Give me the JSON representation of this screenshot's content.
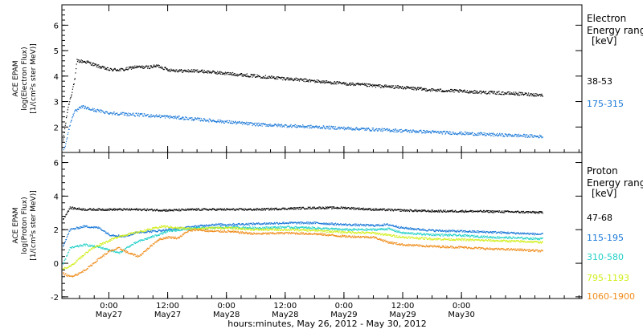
{
  "chart_data": [
    {
      "type": "scatter",
      "panel": "electron",
      "ylabel_lines": [
        "ACE EPAM",
        "log(Electron Flux)",
        "[1/(cm²s ster MeV)]"
      ],
      "legend_title_lines": [
        "Electron",
        "Energy ranges",
        "[keV]"
      ],
      "yticks": [
        "2",
        "3",
        "4",
        "5",
        "6"
      ],
      "ylim": [
        1.0,
        6.8
      ],
      "grid": false,
      "legend_placement": "right",
      "series": [
        {
          "name": "38-53",
          "color": "#000000",
          "points": [
            [
              -9.5,
              1.4
            ],
            [
              -8.5,
              2.7
            ],
            [
              -7.6,
              3.4
            ],
            [
              -7,
              3.9
            ],
            [
              -6.6,
              4.6
            ],
            [
              -4.5,
              4.55
            ],
            [
              -2.5,
              4.4
            ],
            [
              0,
              4.25
            ],
            [
              3,
              4.25
            ],
            [
              5,
              4.35
            ],
            [
              8,
              4.35
            ],
            [
              10,
              4.4
            ],
            [
              12,
              4.25
            ],
            [
              15,
              4.2
            ],
            [
              18,
              4.2
            ],
            [
              21,
              4.15
            ],
            [
              24,
              4.1
            ],
            [
              30,
              4.0
            ],
            [
              36,
              3.9
            ],
            [
              42,
              3.8
            ],
            [
              48,
              3.7
            ],
            [
              54,
              3.62
            ],
            [
              60,
              3.55
            ],
            [
              66,
              3.45
            ],
            [
              72,
              3.4
            ],
            [
              78,
              3.35
            ],
            [
              84,
              3.3
            ],
            [
              88.5,
              3.25
            ]
          ]
        },
        {
          "name": "175-315",
          "color": "#1a78d8",
          "points": [
            [
              -9.5,
              0.9
            ],
            [
              -8.5,
              1.7
            ],
            [
              -7.6,
              2.4
            ],
            [
              -7,
              2.6
            ],
            [
              -5.5,
              2.8
            ],
            [
              -4,
              2.7
            ],
            [
              0,
              2.55
            ],
            [
              4,
              2.5
            ],
            [
              8,
              2.45
            ],
            [
              12,
              2.4
            ],
            [
              18,
              2.3
            ],
            [
              24,
              2.2
            ],
            [
              30,
              2.1
            ],
            [
              36,
              2.05
            ],
            [
              42,
              2.0
            ],
            [
              48,
              1.95
            ],
            [
              54,
              1.9
            ],
            [
              60,
              1.85
            ],
            [
              66,
              1.8
            ],
            [
              72,
              1.75
            ],
            [
              78,
              1.7
            ],
            [
              84,
              1.66
            ],
            [
              88.5,
              1.62
            ]
          ]
        }
      ]
    },
    {
      "type": "scatter",
      "panel": "proton",
      "ylabel_lines": [
        "ACE EPAM",
        "log(Proton Flux)",
        "[1/(cm²s ster MeV)]"
      ],
      "legend_title_lines": [
        "Proton",
        "Energy ranges",
        "[keV]"
      ],
      "yticks": [
        "-2",
        "0",
        "2",
        "4",
        "6"
      ],
      "ylim": [
        -2.1,
        6.6
      ],
      "grid": false,
      "legend_placement": "right",
      "series": [
        {
          "name": "47-68",
          "color": "#000000",
          "points": [
            [
              -9.5,
              2.6
            ],
            [
              -8,
              3.3
            ],
            [
              -5,
              3.2
            ],
            [
              0,
              3.2
            ],
            [
              6,
              3.2
            ],
            [
              12,
              3.15
            ],
            [
              18,
              3.2
            ],
            [
              24,
              3.2
            ],
            [
              30,
              3.2
            ],
            [
              36,
              3.25
            ],
            [
              42,
              3.3
            ],
            [
              48,
              3.3
            ],
            [
              54,
              3.2
            ],
            [
              60,
              3.15
            ],
            [
              66,
              3.1
            ],
            [
              72,
              3.1
            ],
            [
              78,
              3.08
            ],
            [
              84,
              3.05
            ],
            [
              88.5,
              3.02
            ]
          ]
        },
        {
          "name": "115-195",
          "color": "#1a78d8",
          "points": [
            [
              -9.5,
              1.0
            ],
            [
              -8,
              2.0
            ],
            [
              -5,
              2.2
            ],
            [
              -2,
              2.1
            ],
            [
              0,
              1.7
            ],
            [
              3,
              1.6
            ],
            [
              6,
              1.85
            ],
            [
              9,
              1.9
            ],
            [
              12,
              2.0
            ],
            [
              15,
              2.1
            ],
            [
              18,
              2.2
            ],
            [
              21,
              2.3
            ],
            [
              24,
              2.3
            ],
            [
              30,
              2.35
            ],
            [
              36,
              2.4
            ],
            [
              42,
              2.4
            ],
            [
              48,
              2.3
            ],
            [
              54,
              2.25
            ],
            [
              57,
              2.3
            ],
            [
              60,
              2.1
            ],
            [
              66,
              1.95
            ],
            [
              72,
              1.9
            ],
            [
              78,
              1.85
            ],
            [
              84,
              1.78
            ],
            [
              88.5,
              1.72
            ]
          ]
        },
        {
          "name": "310-580",
          "color": "#22d0c8",
          "points": [
            [
              -9.5,
              -0.1
            ],
            [
              -8,
              0.9
            ],
            [
              -5,
              1.1
            ],
            [
              -2,
              0.95
            ],
            [
              0,
              0.8
            ],
            [
              2,
              0.6
            ],
            [
              4,
              1.0
            ],
            [
              6,
              1.3
            ],
            [
              8,
              1.5
            ],
            [
              10,
              1.7
            ],
            [
              12,
              1.9
            ],
            [
              15,
              2.0
            ],
            [
              18,
              2.1
            ],
            [
              21,
              2.1
            ],
            [
              24,
              2.15
            ],
            [
              30,
              2.1
            ],
            [
              36,
              2.15
            ],
            [
              42,
              2.1
            ],
            [
              48,
              2.0
            ],
            [
              54,
              2.0
            ],
            [
              57,
              2.05
            ],
            [
              60,
              1.8
            ],
            [
              66,
              1.7
            ],
            [
              72,
              1.65
            ],
            [
              78,
              1.55
            ],
            [
              84,
              1.5
            ],
            [
              88.5,
              1.45
            ]
          ]
        },
        {
          "name": "795-1193",
          "color": "#d2ee1c",
          "points": [
            [
              -9.5,
              -0.3
            ],
            [
              -8,
              -0.2
            ],
            [
              -6,
              0.3
            ],
            [
              -4,
              0.8
            ],
            [
              -2,
              1.1
            ],
            [
              0,
              1.35
            ],
            [
              2,
              1.6
            ],
            [
              5,
              1.8
            ],
            [
              8,
              2.0
            ],
            [
              11,
              2.2
            ],
            [
              14,
              2.1
            ],
            [
              17,
              2.05
            ],
            [
              20,
              2.1
            ],
            [
              24,
              2.1
            ],
            [
              30,
              2.0
            ],
            [
              36,
              2.0
            ],
            [
              42,
              1.95
            ],
            [
              48,
              1.85
            ],
            [
              54,
              1.8
            ],
            [
              60,
              1.55
            ],
            [
              66,
              1.45
            ],
            [
              72,
              1.4
            ],
            [
              78,
              1.35
            ],
            [
              84,
              1.3
            ],
            [
              88.5,
              1.25
            ]
          ]
        },
        {
          "name": "1060-1900",
          "color": "#ef8c1a",
          "points": [
            [
              -9.5,
              -0.6
            ],
            [
              -8,
              -0.8
            ],
            [
              -6,
              -0.6
            ],
            [
              -4,
              -0.2
            ],
            [
              -2,
              0.3
            ],
            [
              0,
              0.7
            ],
            [
              2,
              0.9
            ],
            [
              4,
              0.6
            ],
            [
              6,
              0.4
            ],
            [
              8,
              0.9
            ],
            [
              10,
              1.4
            ],
            [
              12,
              1.55
            ],
            [
              14,
              1.5
            ],
            [
              16,
              1.9
            ],
            [
              18,
              2.0
            ],
            [
              21,
              1.9
            ],
            [
              24,
              1.9
            ],
            [
              30,
              1.75
            ],
            [
              36,
              1.8
            ],
            [
              42,
              1.75
            ],
            [
              48,
              1.6
            ],
            [
              54,
              1.55
            ],
            [
              57,
              1.25
            ],
            [
              60,
              1.1
            ],
            [
              66,
              1.0
            ],
            [
              72,
              0.95
            ],
            [
              78,
              0.85
            ],
            [
              84,
              0.8
            ],
            [
              88.5,
              0.72
            ]
          ]
        }
      ]
    }
  ],
  "shared_x": {
    "unit": "hours from 2012-05-27 00:00",
    "xlim": [
      -9.6,
      96.6
    ],
    "ticks": [
      {
        "h": 0,
        "time": "0:00",
        "date": "May27"
      },
      {
        "h": 12,
        "time": "12:00",
        "date": "May27"
      },
      {
        "h": 24,
        "time": "0:00",
        "date": "May28"
      },
      {
        "h": 36,
        "time": "12:00",
        "date": "May28"
      },
      {
        "h": 48,
        "time": "0:00",
        "date": "May29"
      },
      {
        "h": 60,
        "time": "12:00",
        "date": "May29"
      },
      {
        "h": 72,
        "time": "0:00",
        "date": "May30"
      }
    ],
    "xlabel": "hours:minutes, May 26, 2012 - May 30, 2012"
  }
}
